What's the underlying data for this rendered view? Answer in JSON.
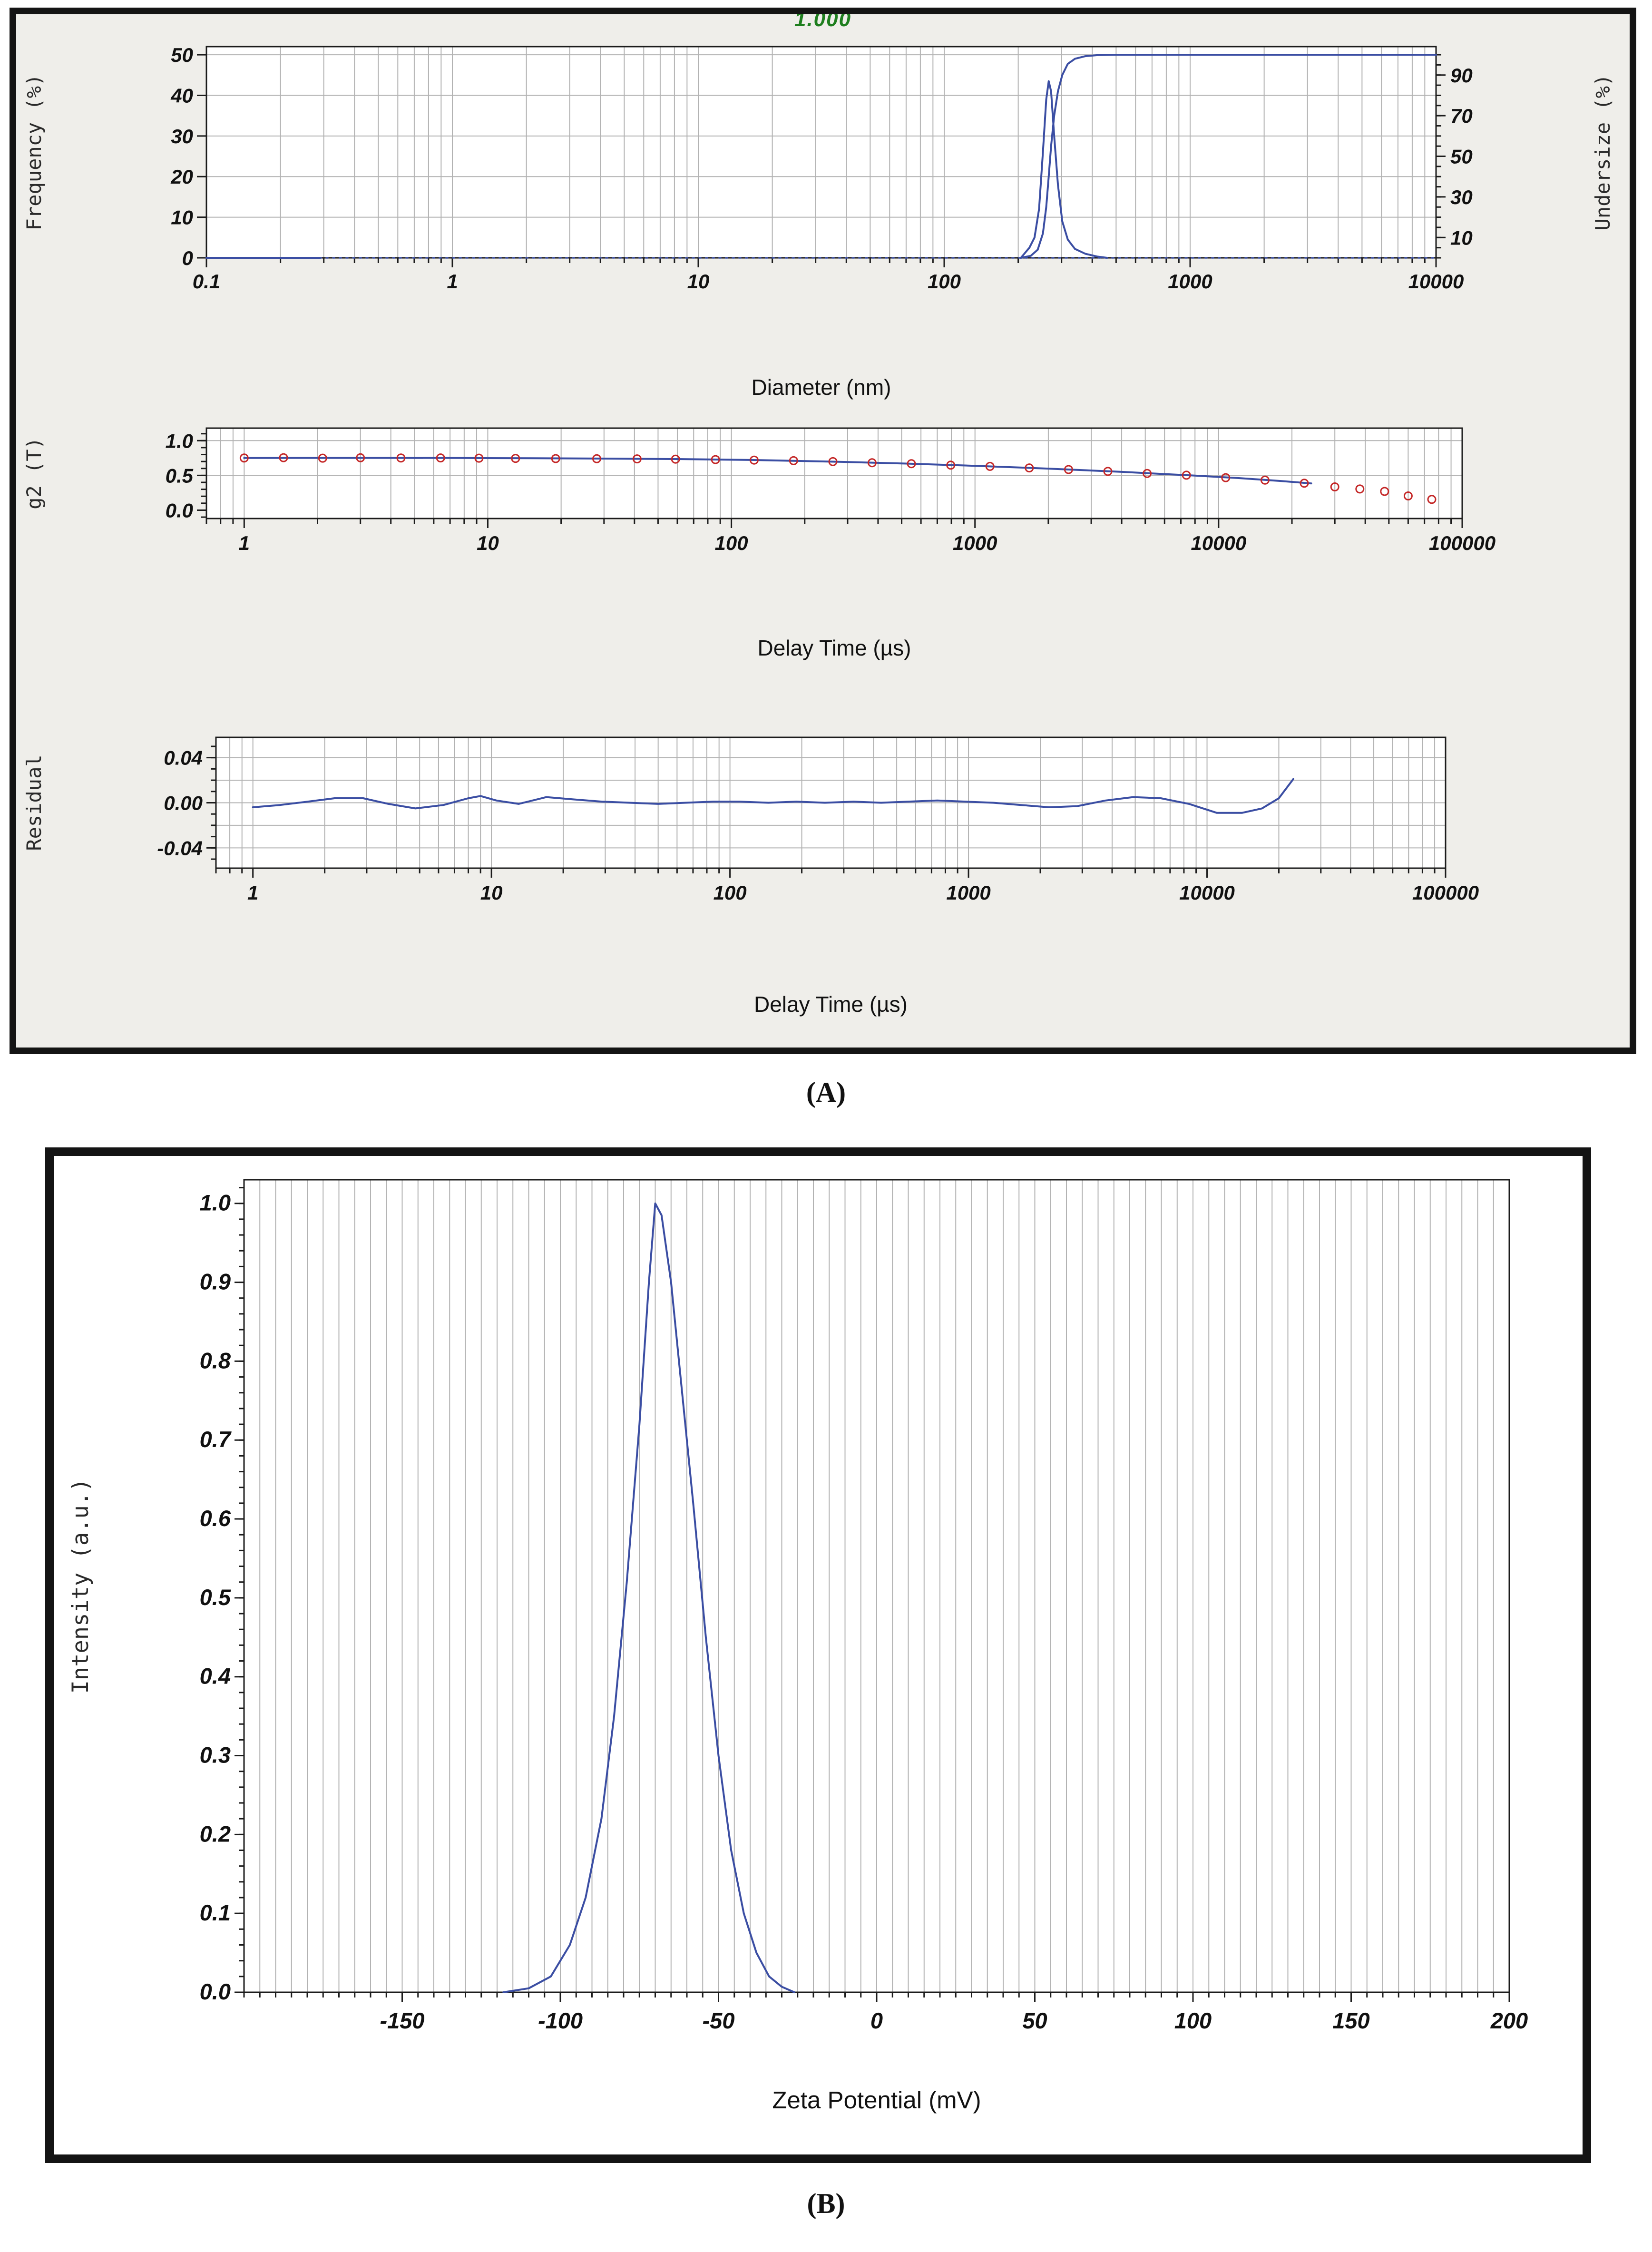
{
  "panel_a": {
    "label": "(A)",
    "annotation": {
      "text": "1.000"
    }
  },
  "panel_b": {
    "label": "(B)"
  },
  "colors": {
    "curve": "#3b4ea3",
    "marker": "#c42727",
    "grid": "#b3b3b3",
    "axis": "#1c1c1c",
    "annotation": "#1e7e1e",
    "panel_a_bg": "#efeeea"
  },
  "chart_data": [
    {
      "id": "size-distribution",
      "type": "line",
      "xlabel": "Diameter (nm)",
      "ylabel_left": "Frequency (%)",
      "ylabel_right": "Undersize (%)",
      "xscale": "log",
      "xlim": [
        0.1,
        10000
      ],
      "xticks": [
        0.1,
        1,
        10,
        100,
        1000,
        10000
      ],
      "xtick_labels": [
        "0.1",
        "1",
        "10",
        "100",
        "1000",
        "10000"
      ],
      "ylim_left": [
        0,
        52
      ],
      "yticks_left": [
        0,
        10,
        20,
        30,
        40,
        50
      ],
      "ytick_labels_left": [
        "0",
        "10",
        "20",
        "30",
        "40",
        "50"
      ],
      "yminor_left": null,
      "ylim_right": [
        0,
        104
      ],
      "yticks_right": [
        10,
        30,
        50,
        70,
        90
      ],
      "ytick_labels_right": [
        "10",
        "30",
        "50",
        "70",
        "90"
      ],
      "yminor_right": 5,
      "hgrid": [
        10,
        20,
        30,
        40,
        50
      ],
      "series": [
        {
          "name": "baseline-dotted",
          "axis": "left",
          "style": "dotted",
          "points": [
            [
              0.1,
              0
            ],
            [
              10000,
              0
            ]
          ]
        },
        {
          "name": "baseline-solid",
          "axis": "left",
          "style": "solid",
          "points": [
            [
              0.1,
              0
            ],
            [
              0.29,
              0
            ]
          ]
        },
        {
          "name": "frequency",
          "axis": "left",
          "style": "solid",
          "points": [
            [
              205,
              0
            ],
            [
              222,
              2.5
            ],
            [
              233,
              5
            ],
            [
              243,
              12
            ],
            [
              252,
              26
            ],
            [
              260,
              39
            ],
            [
              266,
              43.5
            ],
            [
              272,
              41
            ],
            [
              280,
              30
            ],
            [
              290,
              18
            ],
            [
              302,
              9
            ],
            [
              318,
              4.5
            ],
            [
              340,
              2.2
            ],
            [
              375,
              1
            ],
            [
              420,
              0.3
            ],
            [
              460,
              0
            ]
          ]
        },
        {
          "name": "undersize",
          "axis": "right",
          "style": "solid",
          "points": [
            [
              205,
              0
            ],
            [
              225,
              1
            ],
            [
              240,
              4
            ],
            [
              252,
              12
            ],
            [
              260,
              25
            ],
            [
              266,
              40
            ],
            [
              272,
              55
            ],
            [
              280,
              70
            ],
            [
              290,
              82
            ],
            [
              302,
              90
            ],
            [
              318,
              95.5
            ],
            [
              340,
              98
            ],
            [
              375,
              99.3
            ],
            [
              420,
              99.8
            ],
            [
              500,
              100
            ],
            [
              10000,
              100
            ]
          ]
        }
      ]
    },
    {
      "id": "correlation",
      "type": "line+scatter",
      "xlabel": "Delay Time (µs)",
      "ylabel_left": "g2 (T)",
      "xscale": "log",
      "xlim": [
        0.7,
        100000
      ],
      "xticks": [
        1,
        10,
        100,
        1000,
        10000,
        100000
      ],
      "xtick_labels": [
        "1",
        "10",
        "100",
        "1000",
        "10000",
        "100000"
      ],
      "ylim_left": [
        -0.12,
        1.18
      ],
      "yticks_left": [
        0,
        0.5,
        1
      ],
      "ytick_labels_left": [
        "0.0",
        "0.5",
        "1.0"
      ],
      "yminor_left": 0.1,
      "hgrid": [
        0.5,
        1
      ],
      "series": [
        {
          "name": "fit-line",
          "axis": "left",
          "style": "solid",
          "points": [
            [
              1,
              0.75
            ],
            [
              2,
              0.752
            ],
            [
              4,
              0.752
            ],
            [
              8,
              0.75
            ],
            [
              15,
              0.747
            ],
            [
              30,
              0.742
            ],
            [
              60,
              0.735
            ],
            [
              120,
              0.722
            ],
            [
              250,
              0.7
            ],
            [
              500,
              0.672
            ],
            [
              1000,
              0.638
            ],
            [
              2000,
              0.598
            ],
            [
              4000,
              0.551
            ],
            [
              8000,
              0.497
            ],
            [
              12000,
              0.462
            ],
            [
              18000,
              0.42
            ],
            [
              24000,
              0.385
            ]
          ]
        },
        {
          "name": "measured-g2",
          "axis": "left",
          "style": "scatter",
          "points": [
            [
              1,
              0.75
            ],
            [
              1.45,
              0.755
            ],
            [
              2.1,
              0.748
            ],
            [
              3,
              0.754
            ],
            [
              4.4,
              0.75
            ],
            [
              6.4,
              0.752
            ],
            [
              9.2,
              0.748
            ],
            [
              13,
              0.745
            ],
            [
              19,
              0.742
            ],
            [
              28,
              0.74
            ],
            [
              41,
              0.738
            ],
            [
              59,
              0.734
            ],
            [
              86,
              0.728
            ],
            [
              124,
              0.72
            ],
            [
              180,
              0.712
            ],
            [
              261,
              0.698
            ],
            [
              378,
              0.682
            ],
            [
              548,
              0.668
            ],
            [
              795,
              0.648
            ],
            [
              1152,
              0.63
            ],
            [
              1670,
              0.608
            ],
            [
              2421,
              0.585
            ],
            [
              3510,
              0.558
            ],
            [
              5089,
              0.528
            ],
            [
              7378,
              0.503
            ],
            [
              10696,
              0.468
            ],
            [
              15507,
              0.432
            ],
            [
              22481,
              0.388
            ],
            [
              30000,
              0.335
            ],
            [
              38000,
              0.305
            ],
            [
              48000,
              0.27
            ],
            [
              60000,
              0.205
            ],
            [
              75000,
              0.155
            ]
          ]
        }
      ]
    },
    {
      "id": "residual",
      "type": "line",
      "xlabel": "Delay Time (µs)",
      "ylabel_left": "Residual",
      "xscale": "log",
      "xlim": [
        0.7,
        100000
      ],
      "xticks": [
        1,
        10,
        100,
        1000,
        10000,
        100000
      ],
      "xtick_labels": [
        "1",
        "10",
        "100",
        "1000",
        "10000",
        "100000"
      ],
      "ylim_left": [
        -0.058,
        0.058
      ],
      "yticks_left": [
        -0.04,
        0,
        0.04
      ],
      "ytick_labels_left": [
        "-0.04",
        "0.00",
        "0.04"
      ],
      "yminor_left": 0.01,
      "hgrid": [
        -0.04,
        -0.02,
        0,
        0.02,
        0.04
      ],
      "series": [
        {
          "name": "residual-trace",
          "axis": "left",
          "style": "solid",
          "points": [
            [
              1,
              -0.004
            ],
            [
              1.3,
              -0.002
            ],
            [
              1.7,
              0.001
            ],
            [
              2.2,
              0.004
            ],
            [
              2.9,
              0.004
            ],
            [
              3.7,
              -0.001
            ],
            [
              4.8,
              -0.005
            ],
            [
              6.3,
              -0.002
            ],
            [
              8,
              0.004
            ],
            [
              9,
              0.006
            ],
            [
              10.5,
              0.002
            ],
            [
              13,
              -0.001
            ],
            [
              17,
              0.005
            ],
            [
              22,
              0.003
            ],
            [
              29,
              0.001
            ],
            [
              38,
              0
            ],
            [
              50,
              -0.001
            ],
            [
              65,
              0
            ],
            [
              85,
              0.001
            ],
            [
              110,
              0.001
            ],
            [
              145,
              0
            ],
            [
              190,
              0.001
            ],
            [
              250,
              0
            ],
            [
              330,
              0.001
            ],
            [
              430,
              0
            ],
            [
              560,
              0.001
            ],
            [
              740,
              0.002
            ],
            [
              970,
              0.001
            ],
            [
              1270,
              0
            ],
            [
              1660,
              -0.002
            ],
            [
              2180,
              -0.004
            ],
            [
              2860,
              -0.003
            ],
            [
              3750,
              0.002
            ],
            [
              4900,
              0.005
            ],
            [
              6400,
              0.004
            ],
            [
              8400,
              -0.001
            ],
            [
              11000,
              -0.009
            ],
            [
              14000,
              -0.009
            ],
            [
              17000,
              -0.005
            ],
            [
              20000,
              0.004
            ],
            [
              23000,
              0.021
            ]
          ]
        }
      ]
    },
    {
      "id": "zeta-potential",
      "type": "line",
      "xlabel": "Zeta Potential (mV)",
      "ylabel_left": "Intensity (a.u.)",
      "xscale": "linear",
      "xlim": [
        -200,
        200
      ],
      "xticks": [
        -150,
        -100,
        -50,
        0,
        50,
        100,
        150,
        200
      ],
      "xtick_labels": [
        "-150",
        "-100",
        "-50",
        "0",
        "50",
        "100",
        "150",
        "200"
      ],
      "xminor": 5,
      "vgrid_step": 5,
      "ylim_left": [
        0,
        1.03
      ],
      "yticks_left": [
        0,
        0.1,
        0.2,
        0.3,
        0.4,
        0.5,
        0.6,
        0.7,
        0.8,
        0.9,
        1
      ],
      "ytick_labels_left": [
        "0.0",
        "0.1",
        "0.2",
        "0.3",
        "0.4",
        "0.5",
        "0.6",
        "0.7",
        "0.8",
        "0.9",
        "1.0"
      ],
      "yminor_left": 0.02,
      "hgrid": [],
      "series": [
        {
          "name": "intensity",
          "axis": "left",
          "style": "solid",
          "points": [
            [
              -118,
              0
            ],
            [
              -110,
              0.005
            ],
            [
              -103,
              0.02
            ],
            [
              -97,
              0.06
            ],
            [
              -92,
              0.12
            ],
            [
              -87,
              0.22
            ],
            [
              -83,
              0.35
            ],
            [
              -79,
              0.52
            ],
            [
              -75,
              0.72
            ],
            [
              -72,
              0.9
            ],
            [
              -70,
              1.0
            ],
            [
              -68,
              0.985
            ],
            [
              -65,
              0.9
            ],
            [
              -62,
              0.78
            ],
            [
              -58,
              0.62
            ],
            [
              -54,
              0.45
            ],
            [
              -50,
              0.3
            ],
            [
              -46,
              0.18
            ],
            [
              -42,
              0.1
            ],
            [
              -38,
              0.05
            ],
            [
              -34,
              0.02
            ],
            [
              -30,
              0.007
            ],
            [
              -26,
              0
            ]
          ]
        }
      ]
    }
  ]
}
